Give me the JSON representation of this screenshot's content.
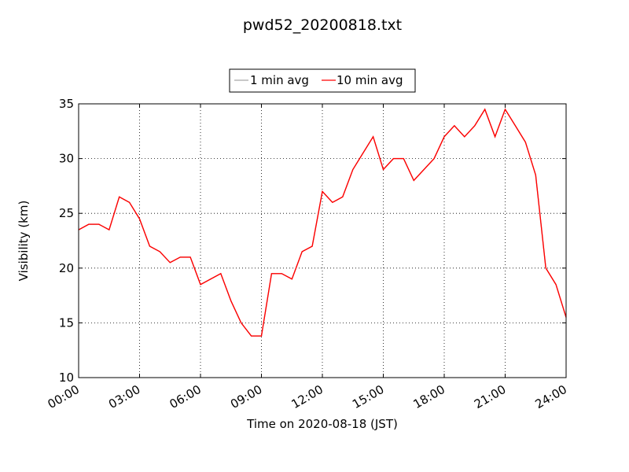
{
  "chart_data": {
    "type": "line",
    "title": "pwd52_20200818.txt",
    "xlabel": "Time on 2020-08-18 (JST)",
    "ylabel": "Visibility (km)",
    "xlim": [
      "00:00",
      "24:00"
    ],
    "ylim": [
      10,
      35
    ],
    "grid": true,
    "legend_position": "top-center",
    "x_ticks": [
      "00:00",
      "03:00",
      "06:00",
      "09:00",
      "12:00",
      "15:00",
      "18:00",
      "21:00",
      "24:00"
    ],
    "y_ticks": [
      "10",
      "15",
      "20",
      "25",
      "30",
      "35"
    ],
    "colors": {
      "series_1min": "#a6a6a6",
      "series_10min": "#ff0000"
    },
    "series": [
      {
        "name": "1 min avg",
        "x": [
          "00:00",
          "00:30",
          "01:00",
          "01:30",
          "02:00",
          "02:30",
          "03:00",
          "03:30",
          "04:00",
          "04:30",
          "05:00",
          "05:30",
          "06:00",
          "06:30",
          "07:00",
          "07:30",
          "08:00",
          "08:30",
          "09:00",
          "09:30",
          "10:00",
          "10:30",
          "11:00",
          "11:30",
          "12:00",
          "12:30",
          "13:00",
          "13:30",
          "14:00",
          "14:30",
          "15:00",
          "15:30",
          "16:00",
          "16:30",
          "17:00",
          "17:30",
          "18:00",
          "18:30",
          "19:00",
          "19:30",
          "20:00",
          "20:30",
          "21:00",
          "21:30",
          "22:00",
          "22:30",
          "23:00",
          "23:30",
          "24:00"
        ],
        "values": [
          23.5,
          24,
          24,
          23.5,
          26.5,
          26,
          24.5,
          22,
          21.5,
          20.5,
          21,
          21,
          18.5,
          19,
          19.5,
          17,
          15,
          13.8,
          13.8,
          19.5,
          19.5,
          19,
          21.5,
          22,
          27,
          26,
          26.5,
          29,
          30.5,
          32,
          29,
          30,
          30,
          28,
          29,
          30,
          32,
          33,
          32,
          33,
          34.5,
          32,
          34.5,
          33,
          31.5,
          28.5,
          20,
          18.5,
          15.5
        ]
      },
      {
        "name": "10 min avg",
        "x": [
          "00:00",
          "00:30",
          "01:00",
          "01:30",
          "02:00",
          "02:30",
          "03:00",
          "03:30",
          "04:00",
          "04:30",
          "05:00",
          "05:30",
          "06:00",
          "06:30",
          "07:00",
          "07:30",
          "08:00",
          "08:30",
          "09:00",
          "09:30",
          "10:00",
          "10:30",
          "11:00",
          "11:30",
          "12:00",
          "12:30",
          "13:00",
          "13:30",
          "14:00",
          "14:30",
          "15:00",
          "15:30",
          "16:00",
          "16:30",
          "17:00",
          "17:30",
          "18:00",
          "18:30",
          "19:00",
          "19:30",
          "20:00",
          "20:30",
          "21:00",
          "21:30",
          "22:00",
          "22:30",
          "23:00",
          "23:30",
          "24:00"
        ],
        "values": [
          23.5,
          24,
          24,
          23.5,
          26.5,
          26,
          24.5,
          22,
          21.5,
          20.5,
          21,
          21,
          18.5,
          19,
          19.5,
          17,
          15,
          13.8,
          13.8,
          19.5,
          19.5,
          19,
          21.5,
          22,
          27,
          26,
          26.5,
          29,
          30.5,
          32,
          29,
          30,
          30,
          28,
          29,
          30,
          32,
          33,
          32,
          33,
          34.5,
          32,
          34.5,
          33,
          31.5,
          28.5,
          20,
          18.5,
          15.5
        ]
      }
    ]
  }
}
